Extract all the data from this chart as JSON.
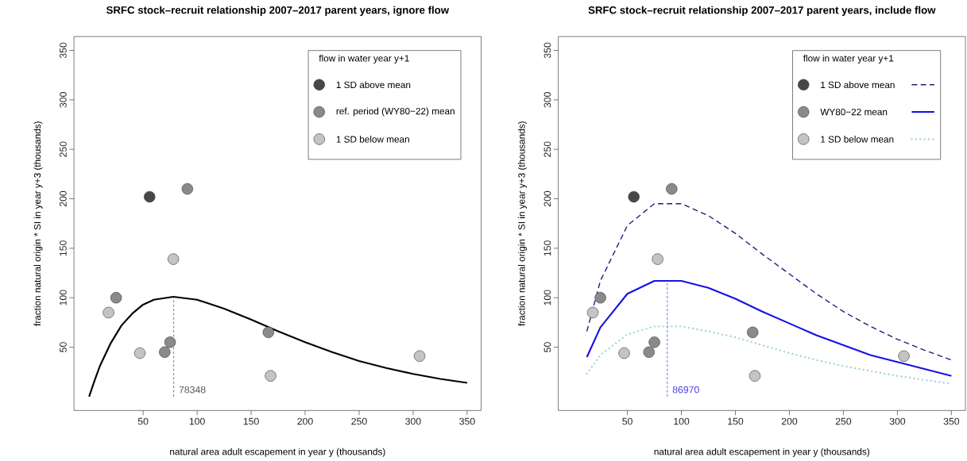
{
  "chart_data": [
    {
      "type": "scatter",
      "title": "SRFC stock–recruit relationship 2007–2017 parent years, ignore flow",
      "xlabel": "natural area adult escapement in year y (thousands)",
      "ylabel": "fraction natural origin * SI in year y+3 (thousands)",
      "legend_title": "flow in water year y+1",
      "legend": "top right",
      "xlim": [
        -14,
        363
      ],
      "ylim": [
        -14,
        364
      ],
      "xticks": [
        50,
        100,
        150,
        200,
        250,
        300,
        350
      ],
      "yticks": [
        50,
        100,
        150,
        200,
        250,
        300,
        350
      ],
      "ref_lines": [
        {
          "axis": "x",
          "value": 78.348,
          "label": "78348",
          "color": "#555555",
          "line_style": "dashed"
        }
      ],
      "series": [
        {
          "name": "1 SD above mean",
          "marker": "circle",
          "color": "#474747",
          "x": [
            56
          ],
          "values": [
            202
          ]
        },
        {
          "name": "ref. period (WY80−22) mean",
          "marker": "circle",
          "color": "#8a8a8a",
          "x": [
            91,
            25,
            75,
            70,
            166
          ],
          "values": [
            210,
            100,
            55,
            45,
            65
          ]
        },
        {
          "name": "1 SD below mean",
          "marker": "circle",
          "color": "#c4c4c4",
          "x": [
            78,
            18,
            47,
            168,
            306
          ],
          "values": [
            139,
            85,
            44,
            21,
            41
          ]
        },
        {
          "type": "line",
          "marker": "none",
          "line_style": "solid",
          "color": "#000000",
          "x": [
            0,
            5,
            10,
            20,
            30,
            40,
            50,
            60,
            78,
            100,
            125,
            150,
            175,
            200,
            225,
            250,
            275,
            300,
            325,
            350
          ],
          "values": [
            0,
            16,
            31,
            54,
            72,
            84,
            93,
            98,
            101,
            98,
            89,
            78,
            66,
            55,
            45,
            36,
            29,
            23,
            18,
            14
          ]
        }
      ]
    },
    {
      "type": "scatter",
      "title": "SRFC stock–recruit relationship 2007–2017 parent years, include flow",
      "xlabel": "natural area adult escapement in year y (thousands)",
      "ylabel": "fraction natural origin * SI in year y+3 (thousands)",
      "legend_title": "flow in water year y+1",
      "legend": "top right",
      "xlim": [
        -14,
        363
      ],
      "ylim": [
        -14,
        364
      ],
      "xticks": [
        50,
        100,
        150,
        200,
        250,
        300,
        350
      ],
      "yticks": [
        50,
        100,
        150,
        200,
        250,
        300,
        350
      ],
      "ref_lines": [
        {
          "axis": "x",
          "value": 86.97,
          "label": "86970",
          "color": "#4a3fe0",
          "line_style": "dashed"
        }
      ],
      "series": [
        {
          "name": "1 SD above mean",
          "marker": "circle",
          "color": "#474747",
          "x": [
            56
          ],
          "values": [
            202
          ]
        },
        {
          "name": "WY80−22 mean",
          "marker": "circle",
          "color": "#8a8a8a",
          "x": [
            91,
            25,
            75,
            70,
            166
          ],
          "values": [
            210,
            100,
            55,
            45,
            65
          ]
        },
        {
          "name": "1 SD below mean",
          "marker": "circle",
          "color": "#c4c4c4",
          "x": [
            78,
            18,
            47,
            168,
            306
          ],
          "values": [
            139,
            85,
            44,
            21,
            41
          ]
        },
        {
          "type": "line",
          "marker": "none",
          "line_style": "dashed",
          "color": "#1c1c7a",
          "x": [
            12.5,
            25,
            50,
            75,
            100,
            125,
            150,
            175,
            200,
            225,
            250,
            275,
            300,
            325,
            350
          ],
          "values": [
            66,
            117,
            173,
            195,
            195,
            183,
            165,
            144,
            124,
            104,
            86,
            71,
            58,
            47,
            37
          ]
        },
        {
          "type": "line",
          "marker": "none",
          "line_style": "solid",
          "color": "#1414e6",
          "x": [
            12.5,
            25,
            50,
            75,
            100,
            125,
            150,
            175,
            200,
            225,
            250,
            275,
            300,
            325,
            350
          ],
          "values": [
            40,
            70,
            104,
            117,
            117,
            110,
            99,
            86,
            74,
            62,
            52,
            42,
            35,
            28,
            21
          ]
        },
        {
          "type": "line",
          "marker": "none",
          "line_style": "dotted",
          "color": "#a3d3d8",
          "x": [
            12.5,
            25,
            50,
            75,
            100,
            125,
            150,
            175,
            200,
            225,
            250,
            275,
            300,
            325,
            350
          ],
          "values": [
            23,
            42,
            63,
            71,
            71,
            66,
            60,
            52,
            44,
            37,
            31,
            26,
            21,
            17,
            13
          ]
        }
      ]
    }
  ]
}
